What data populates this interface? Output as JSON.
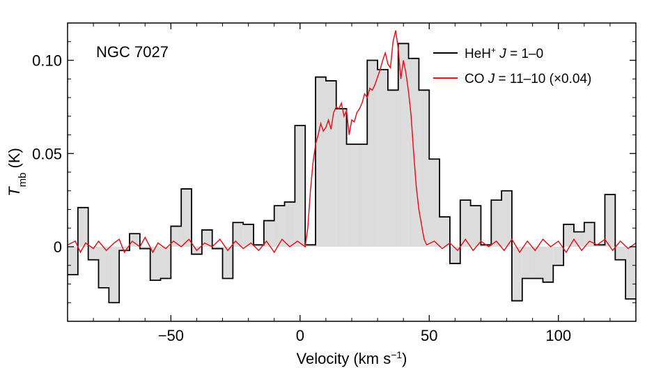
{
  "chart_data": {
    "type": "line",
    "annotation": "NGC 7027",
    "xlabel": {
      "main": "Velocity (km s",
      "sup": "−1",
      "end": ")"
    },
    "ylabel": {
      "main": "T",
      "sub": "mb",
      "end": " (K)"
    },
    "xlim": [
      -90,
      130
    ],
    "ylim": [
      -0.04,
      0.12
    ],
    "xticks": [
      {
        "value": -50,
        "label": "−50"
      },
      {
        "value": 0,
        "label": "0"
      },
      {
        "value": 50,
        "label": "50"
      },
      {
        "value": 100,
        "label": "100"
      }
    ],
    "yticks": [
      {
        "value": 0,
        "label": "0"
      },
      {
        "value": 0.05,
        "label": "0.05"
      },
      {
        "value": 0.1,
        "label": "0.10"
      }
    ],
    "legend": {
      "position": "top-right",
      "entries": [
        {
          "series": "HeH+",
          "parts": [
            "HeH",
            "+",
            " J",
            " = 1–0"
          ]
        },
        {
          "series": "CO",
          "parts": [
            "CO",
            " J",
            " = 11–10 (×0.04)"
          ]
        }
      ]
    },
    "series": [
      {
        "name": "HeH+ J = 1–0",
        "style": "histogram",
        "color": "#000000",
        "fill": "#dcdcdc",
        "bin_edges": [
          -90,
          -86,
          -82,
          -78,
          -74,
          -70,
          -66,
          -62,
          -58,
          -54,
          -50,
          -46,
          -42,
          -38,
          -34,
          -30,
          -26,
          -22,
          -18,
          -14,
          -10,
          -6,
          -2,
          2,
          6,
          10,
          14,
          18,
          22,
          26,
          30,
          34,
          38,
          42,
          46,
          50,
          54,
          58,
          62,
          66,
          70,
          74,
          78,
          82,
          86,
          90,
          94,
          98,
          102,
          106,
          110,
          114,
          118,
          122,
          126,
          130
        ],
        "values": [
          -0.015,
          0.021,
          -0.007,
          -0.022,
          -0.03,
          -0.002,
          0.007,
          -0.001,
          -0.018,
          -0.017,
          0.011,
          0.031,
          -0.004,
          0.009,
          -0.001,
          -0.017,
          0.013,
          0.012,
          0.001,
          0.014,
          0.022,
          0.024,
          0.065,
          0.001,
          0.091,
          0.089,
          0.074,
          0.055,
          0.055,
          0.1,
          0.095,
          0.084,
          0.109,
          0.101,
          0.084,
          0.047,
          0.016,
          -0.009,
          0.025,
          0.022,
          0.001,
          0.025,
          0.03,
          -0.029,
          -0.017,
          -0.017,
          -0.019,
          -0.01,
          0.012,
          0.008,
          0.013,
          0.001,
          0.028,
          -0.007,
          -0.028
        ]
      },
      {
        "name": "CO J = 11–10 (×0.04)",
        "style": "line",
        "color": "#e8141c",
        "points": [
          [
            -90,
            0.001
          ],
          [
            -87,
            0.003
          ],
          [
            -85,
            -0.003
          ],
          [
            -83,
            0.002
          ],
          [
            -80,
            -0.001
          ],
          [
            -78,
            0.003
          ],
          [
            -75,
            -0.002
          ],
          [
            -72,
            0.002
          ],
          [
            -70,
            0.004
          ],
          [
            -68,
            -0.003
          ],
          [
            -65,
            0.003
          ],
          [
            -62,
            0.0
          ],
          [
            -60,
            0.005
          ],
          [
            -57,
            -0.003
          ],
          [
            -55,
            0.002
          ],
          [
            -52,
            -0.001
          ],
          [
            -49,
            0.003
          ],
          [
            -46,
            0.0
          ],
          [
            -43,
            0.004
          ],
          [
            -40,
            -0.002
          ],
          [
            -37,
            0.002
          ],
          [
            -34,
            0.0
          ],
          [
            -31,
            0.004
          ],
          [
            -28,
            -0.002
          ],
          [
            -25,
            0.003
          ],
          [
            -22,
            -0.001
          ],
          [
            -19,
            0.002
          ],
          [
            -16,
            -0.002
          ],
          [
            -13,
            0.003
          ],
          [
            -10,
            -0.003
          ],
          [
            -7,
            0.004
          ],
          [
            -4,
            0.0
          ],
          [
            -1,
            0.003
          ],
          [
            2,
            0.0
          ],
          [
            3,
            0.01
          ],
          [
            4,
            0.03
          ],
          [
            5,
            0.045
          ],
          [
            6,
            0.055
          ],
          [
            7,
            0.06
          ],
          [
            8,
            0.066
          ],
          [
            9,
            0.062
          ],
          [
            10,
            0.064
          ],
          [
            11,
            0.068
          ],
          [
            12,
            0.063
          ],
          [
            13,
            0.072
          ],
          [
            14,
            0.075
          ],
          [
            15,
            0.074
          ],
          [
            16,
            0.077
          ],
          [
            17,
            0.07
          ],
          [
            18,
            0.073
          ],
          [
            19,
            0.06
          ],
          [
            20,
            0.068
          ],
          [
            21,
            0.067
          ],
          [
            22,
            0.072
          ],
          [
            23,
            0.074
          ],
          [
            24,
            0.077
          ],
          [
            25,
            0.082
          ],
          [
            26,
            0.08
          ],
          [
            27,
            0.085
          ],
          [
            28,
            0.084
          ],
          [
            29,
            0.087
          ],
          [
            30,
            0.091
          ],
          [
            31,
            0.095
          ],
          [
            32,
            0.1
          ],
          [
            33,
            0.104
          ],
          [
            34,
            0.098
          ],
          [
            35,
            0.096
          ],
          [
            36,
            0.11
          ],
          [
            37,
            0.116
          ],
          [
            38,
            0.106
          ],
          [
            39,
            0.09
          ],
          [
            40,
            0.1
          ],
          [
            41,
            0.093
          ],
          [
            42,
            0.083
          ],
          [
            43,
            0.07
          ],
          [
            44,
            0.05
          ],
          [
            45,
            0.032
          ],
          [
            46,
            0.02
          ],
          [
            47,
            0.012
          ],
          [
            48,
            0.004
          ],
          [
            49,
            0.001
          ],
          [
            52,
            0.003
          ],
          [
            55,
            -0.001
          ],
          [
            58,
            0.002
          ],
          [
            61,
            -0.002
          ],
          [
            64,
            0.004
          ],
          [
            67,
            -0.002
          ],
          [
            70,
            0.003
          ],
          [
            73,
            0.0
          ],
          [
            76,
            0.003
          ],
          [
            79,
            -0.002
          ],
          [
            82,
            0.004
          ],
          [
            85,
            -0.003
          ],
          [
            88,
            0.003
          ],
          [
            91,
            -0.002
          ],
          [
            94,
            0.004
          ],
          [
            97,
            0.0
          ],
          [
            100,
            0.003
          ],
          [
            103,
            -0.003
          ],
          [
            106,
            0.004
          ],
          [
            109,
            -0.002
          ],
          [
            112,
            0.003
          ],
          [
            115,
            0.001
          ],
          [
            118,
            0.004
          ],
          [
            121,
            -0.002
          ],
          [
            124,
            0.003
          ],
          [
            127,
            -0.001
          ],
          [
            130,
            0.002
          ]
        ]
      }
    ],
    "grid": false
  }
}
